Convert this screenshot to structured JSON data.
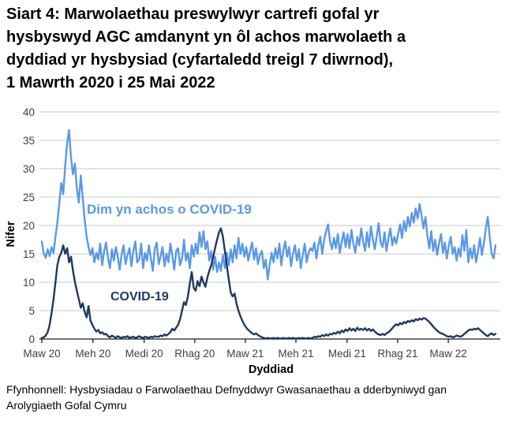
{
  "title": "Siart 4: Marwolaethau preswylwyr cartrefi gofal yr\nhysbyswyd AGC amdanynt yn ôl achos marwolaeth a\ndyddiad yr hysbysiad (cyfartaledd treigl 7 diwrnod),\n1 Mawrth 2020 i 25 Mai 2022",
  "footer": "Ffynhonnell: Hysbysiadau o Farwolaethau Defnyddwyr Gwasanaethau a dderbyniwyd gan\nArolygiaeth Gofal Cymru",
  "chart_data": {
    "type": "line",
    "title": "Siart 4: Marwolaethau preswylwyr cartrefi gofal yr hysbyswyd AGC amdanynt yn ôl achos marwolaeth a dyddiad yr hysbysiad (cyfartaledd treigl 7 diwrnod), 1 Mawrth 2020 i 25 Mai 2022",
    "xlabel": "Dyddiad",
    "ylabel": "Nifer",
    "ylim": [
      0,
      40
    ],
    "y_ticks": [
      0,
      5,
      10,
      15,
      20,
      25,
      30,
      35,
      40
    ],
    "grid": true,
    "legend_position": "inline-labels",
    "x_start": "2020-03-01",
    "x_end": "2022-05-25",
    "x_range_days": 816,
    "point_interval_days": 3.5,
    "x_ticks": [
      {
        "label": "Maw 20",
        "day": 0
      },
      {
        "label": "Meh 20",
        "day": 92
      },
      {
        "label": "Medi 20",
        "day": 184
      },
      {
        "label": "Rhag 20",
        "day": 275
      },
      {
        "label": "Maw 21",
        "day": 366
      },
      {
        "label": "Meh 21",
        "day": 457
      },
      {
        "label": "Medi 21",
        "day": 549
      },
      {
        "label": "Rhag 21",
        "day": 640
      },
      {
        "label": "Maw 22",
        "day": 731
      }
    ],
    "colors": {
      "non_covid": "#5a99e6",
      "covid": "#1f3864",
      "gridline": "#c9c9c9",
      "axis": "#1a1a1a"
    },
    "series": [
      {
        "id": "non-covid",
        "name": "Dim yn achos o COVID-19",
        "color_key": "non_covid",
        "values": [
          17.2,
          15.0,
          14.3,
          15.8,
          14.6,
          16.2,
          15.1,
          18.0,
          20.5,
          24.0,
          27.5,
          25.5,
          30.5,
          34.5,
          36.8,
          32.0,
          29.0,
          30.9,
          26.5,
          24.0,
          28.8,
          25.0,
          21.0,
          18.0,
          16.2,
          14.8,
          16.0,
          13.5,
          15.2,
          14.0,
          16.8,
          13.0,
          15.5,
          17.0,
          14.2,
          12.5,
          15.8,
          13.8,
          16.2,
          14.5,
          12.2,
          15.0,
          16.5,
          13.2,
          14.8,
          16.0,
          12.8,
          15.5,
          17.2,
          13.5,
          14.0,
          16.8,
          12.5,
          15.2,
          13.8,
          16.5,
          14.2,
          12.0,
          15.8,
          17.0,
          13.2,
          14.5,
          16.2,
          12.8,
          15.0,
          13.5,
          16.8,
          14.8,
          12.2,
          15.5,
          16.0,
          13.0,
          14.2,
          17.5,
          13.8,
          15.2,
          12.5,
          16.5,
          14.5,
          16.8,
          15.0,
          18.8,
          16.2,
          19.0,
          15.8,
          17.2,
          13.8,
          15.5,
          12.2,
          14.5,
          11.8,
          13.5,
          12.0,
          14.8,
          12.5,
          15.2,
          13.0,
          15.8,
          13.5,
          16.5,
          14.2,
          17.8,
          15.0,
          16.8,
          14.5,
          16.2,
          13.8,
          15.5,
          17.0,
          14.0,
          16.0,
          13.2,
          14.8,
          15.5,
          12.5,
          14.0,
          10.5,
          13.0,
          15.2,
          13.5,
          16.0,
          14.2,
          16.8,
          13.0,
          15.5,
          17.2,
          14.5,
          16.2,
          12.8,
          15.0,
          16.5,
          13.8,
          15.8,
          12.5,
          14.8,
          16.8,
          13.5,
          15.2,
          16.0,
          15.5,
          17.0,
          14.2,
          16.5,
          18.0,
          15.0,
          17.5,
          19.0,
          20.2,
          17.2,
          15.8,
          17.8,
          16.0,
          18.5,
          15.2,
          17.0,
          18.8,
          16.2,
          18.5,
          16.0,
          19.2,
          16.8,
          15.2,
          18.0,
          16.5,
          19.5,
          17.2,
          15.5,
          18.8,
          16.2,
          19.8,
          17.5,
          15.8,
          18.2,
          20.4,
          17.0,
          16.2,
          18.8,
          15.5,
          17.8,
          19.5,
          16.5,
          18.0,
          16.8,
          18.5,
          20.2,
          17.8,
          20.8,
          19.0,
          21.5,
          19.8,
          22.2,
          20.5,
          23.0,
          21.2,
          23.8,
          21.8,
          19.5,
          21.5,
          18.2,
          16.0,
          19.0,
          15.5,
          17.5,
          14.8,
          16.8,
          18.5,
          15.2,
          17.0,
          14.2,
          16.5,
          18.0,
          15.0,
          16.2,
          13.8,
          16.0,
          14.5,
          18.3,
          15.5,
          19.2,
          13.5,
          16.0,
          14.2,
          16.5,
          13.5,
          15.5,
          17.8,
          14.8,
          16.8,
          19.5,
          21.5,
          18.0,
          15.0,
          14.2,
          16.5
        ]
      },
      {
        "id": "covid",
        "name": "COVID-19",
        "color_key": "covid",
        "values": [
          0.2,
          0.3,
          0.6,
          1.2,
          2.5,
          4.5,
          7.0,
          10.0,
          13.0,
          14.5,
          15.2,
          16.5,
          15.0,
          16.0,
          13.5,
          14.5,
          12.0,
          10.0,
          8.5,
          7.0,
          5.5,
          6.3,
          4.8,
          3.8,
          5.8,
          3.2,
          2.5,
          1.8,
          1.3,
          1.6,
          1.0,
          1.2,
          0.8,
          0.9,
          0.5,
          0.3,
          0.6,
          0.4,
          0.2,
          0.5,
          0.3,
          0.2,
          0.4,
          0.3,
          0.5,
          0.2,
          0.3,
          0.4,
          0.2,
          0.3,
          0.5,
          0.3,
          0.2,
          0.4,
          0.3,
          0.2,
          0.4,
          0.3,
          0.5,
          0.4,
          0.4,
          0.6,
          0.5,
          0.8,
          0.6,
          0.9,
          1.2,
          1.8,
          1.5,
          2.0,
          2.5,
          3.5,
          5.0,
          6.5,
          6.0,
          7.5,
          9.8,
          11.8,
          9.0,
          8.5,
          10.2,
          9.3,
          11.0,
          10.0,
          9.2,
          10.8,
          12.0,
          13.0,
          14.5,
          16.0,
          17.5,
          18.8,
          19.5,
          18.0,
          15.5,
          13.0,
          10.5,
          8.2,
          7.5,
          8.0,
          6.2,
          5.0,
          4.0,
          3.2,
          2.5,
          2.0,
          1.6,
          1.3,
          1.0,
          0.8,
          1.0,
          0.7,
          0.5,
          0.3,
          0.2,
          0.1,
          0.2,
          0.1,
          0.1,
          0.2,
          0.1,
          0.2,
          0.1,
          0.1,
          0.2,
          0.1,
          0.1,
          0.2,
          0.1,
          0.2,
          0.1,
          0.1,
          0.2,
          0.1,
          0.2,
          0.1,
          0.1,
          0.2,
          0.1,
          0.2,
          0.4,
          0.3,
          0.5,
          0.4,
          0.7,
          0.5,
          0.8,
          0.6,
          0.9,
          0.8,
          1.1,
          0.9,
          1.3,
          1.0,
          1.5,
          1.2,
          1.7,
          1.4,
          1.9,
          1.5,
          1.8,
          1.4,
          2.0,
          1.6,
          1.8,
          1.6,
          1.9,
          1.5,
          1.8,
          1.4,
          1.7,
          1.3,
          1.0,
          0.8,
          0.7,
          0.9,
          0.7,
          1.0,
          1.2,
          1.5,
          1.9,
          2.3,
          2.6,
          2.4,
          2.8,
          2.6,
          3.0,
          2.8,
          3.2,
          3.0,
          3.3,
          3.1,
          3.5,
          3.3,
          3.6,
          3.4,
          3.7,
          3.6,
          3.3,
          3.0,
          2.6,
          2.2,
          1.8,
          1.5,
          1.2,
          1.0,
          0.9,
          0.7,
          0.5,
          0.4,
          0.5,
          0.3,
          0.4,
          0.6,
          0.5,
          0.4,
          0.6,
          0.9,
          1.2,
          1.5,
          1.7,
          1.6,
          1.8,
          1.7,
          1.9,
          1.6,
          1.3,
          1.0,
          0.7,
          0.5,
          0.8,
          1.0,
          0.7,
          0.9
        ]
      }
    ]
  }
}
